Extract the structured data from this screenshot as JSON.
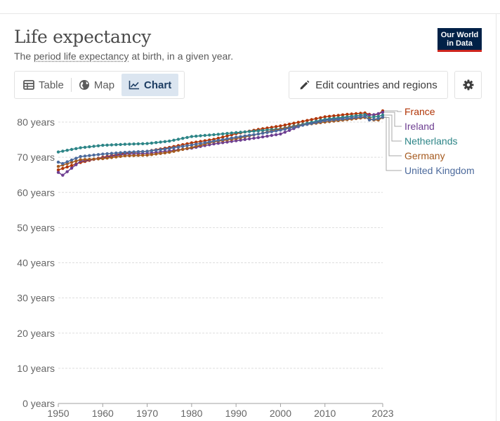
{
  "header": {
    "title": "Life expectancy",
    "subtitle_pre": "The ",
    "subtitle_link": "period life expectancy",
    "subtitle_post": " at birth, in a given year.",
    "logo_line1": "Our World",
    "logo_line2": "in Data"
  },
  "controls": {
    "tabs": [
      {
        "label": "Table",
        "icon": "table-icon"
      },
      {
        "label": "Map",
        "icon": "globe-icon"
      },
      {
        "label": "Chart",
        "icon": "line-chart-icon",
        "active": true
      }
    ],
    "edit_label": "Edit countries and regions",
    "edit_icon": "pencil-icon",
    "settings_icon": "gear-icon"
  },
  "chart_data": {
    "type": "line",
    "y_ticks": [
      "0 years",
      "10 years",
      "20 years",
      "30 years",
      "40 years",
      "50 years",
      "60 years",
      "70 years",
      "80 years"
    ],
    "y_tick_values": [
      0,
      10,
      20,
      30,
      40,
      50,
      60,
      70,
      80
    ],
    "x_ticks": [
      "1950",
      "1960",
      "1970",
      "1980",
      "1990",
      "2000",
      "2010",
      "2023"
    ],
    "x_tick_values": [
      1950,
      1960,
      1970,
      1980,
      1990,
      2000,
      2010,
      2023
    ],
    "xlim": [
      1950,
      2023
    ],
    "ylim": [
      0,
      80
    ],
    "grid": "horizontal dashed",
    "legend_placement": "right",
    "series": [
      {
        "name": "France",
        "color": "#b13507",
        "anchors": [
          [
            1950,
            66.4
          ],
          [
            1955,
            68.5
          ],
          [
            1960,
            70.0
          ],
          [
            1965,
            71.2
          ],
          [
            1970,
            71.7
          ],
          [
            1975,
            72.8
          ],
          [
            1980,
            74.1
          ],
          [
            1985,
            75.1
          ],
          [
            1990,
            76.7
          ],
          [
            1995,
            77.9
          ],
          [
            2000,
            78.9
          ],
          [
            2005,
            80.2
          ],
          [
            2010,
            81.5
          ],
          [
            2015,
            82.2
          ],
          [
            2019,
            82.6
          ],
          [
            2020,
            82.2
          ],
          [
            2021,
            82.0
          ],
          [
            2022,
            82.3
          ],
          [
            2023,
            83.2
          ]
        ]
      },
      {
        "name": "Ireland",
        "color": "#6d3e91",
        "anchors": [
          [
            1950,
            65.7
          ],
          [
            1951,
            64.9
          ],
          [
            1955,
            68.9
          ],
          [
            1960,
            69.8
          ],
          [
            1965,
            70.9
          ],
          [
            1970,
            71.1
          ],
          [
            1975,
            71.8
          ],
          [
            1980,
            72.6
          ],
          [
            1985,
            73.8
          ],
          [
            1990,
            74.7
          ],
          [
            1995,
            75.6
          ],
          [
            2000,
            76.6
          ],
          [
            2005,
            79.2
          ],
          [
            2010,
            80.6
          ],
          [
            2015,
            81.4
          ],
          [
            2019,
            82.1
          ],
          [
            2020,
            82.0
          ],
          [
            2021,
            82.1
          ],
          [
            2022,
            82.4
          ],
          [
            2023,
            82.8
          ]
        ]
      },
      {
        "name": "Netherlands",
        "color": "#2d8587",
        "anchors": [
          [
            1950,
            71.5
          ],
          [
            1955,
            72.7
          ],
          [
            1960,
            73.4
          ],
          [
            1965,
            73.7
          ],
          [
            1970,
            73.9
          ],
          [
            1975,
            74.6
          ],
          [
            1980,
            75.9
          ],
          [
            1985,
            76.4
          ],
          [
            1990,
            77.0
          ],
          [
            1995,
            77.5
          ],
          [
            2000,
            78.1
          ],
          [
            2005,
            79.4
          ],
          [
            2010,
            80.8
          ],
          [
            2015,
            81.5
          ],
          [
            2019,
            82.1
          ],
          [
            2020,
            81.3
          ],
          [
            2021,
            81.5
          ],
          [
            2022,
            81.6
          ],
          [
            2023,
            82.0
          ]
        ]
      },
      {
        "name": "Germany",
        "color": "#a55a1f",
        "anchors": [
          [
            1950,
            67.4
          ],
          [
            1955,
            69.3
          ],
          [
            1960,
            69.6
          ],
          [
            1965,
            70.4
          ],
          [
            1970,
            70.6
          ],
          [
            1975,
            71.4
          ],
          [
            1980,
            72.8
          ],
          [
            1985,
            74.4
          ],
          [
            1990,
            75.3
          ],
          [
            1995,
            76.6
          ],
          [
            2000,
            78.0
          ],
          [
            2005,
            79.2
          ],
          [
            2010,
            80.0
          ],
          [
            2015,
            80.7
          ],
          [
            2019,
            81.3
          ],
          [
            2020,
            81.0
          ],
          [
            2021,
            80.6
          ],
          [
            2022,
            80.6
          ],
          [
            2023,
            81.3
          ]
        ]
      },
      {
        "name": "United Kingdom",
        "color": "#4c6a9c",
        "anchors": [
          [
            1950,
            68.6
          ],
          [
            1951,
            68.2
          ],
          [
            1955,
            70.2
          ],
          [
            1960,
            70.9
          ],
          [
            1965,
            71.4
          ],
          [
            1970,
            71.7
          ],
          [
            1975,
            72.5
          ],
          [
            1980,
            73.5
          ],
          [
            1985,
            74.6
          ],
          [
            1990,
            75.7
          ],
          [
            1995,
            76.6
          ],
          [
            2000,
            77.7
          ],
          [
            2005,
            79.1
          ],
          [
            2010,
            80.4
          ],
          [
            2015,
            81.0
          ],
          [
            2019,
            81.6
          ],
          [
            2020,
            80.6
          ],
          [
            2021,
            80.8
          ],
          [
            2022,
            81.0
          ],
          [
            2023,
            81.4
          ]
        ]
      }
    ]
  }
}
